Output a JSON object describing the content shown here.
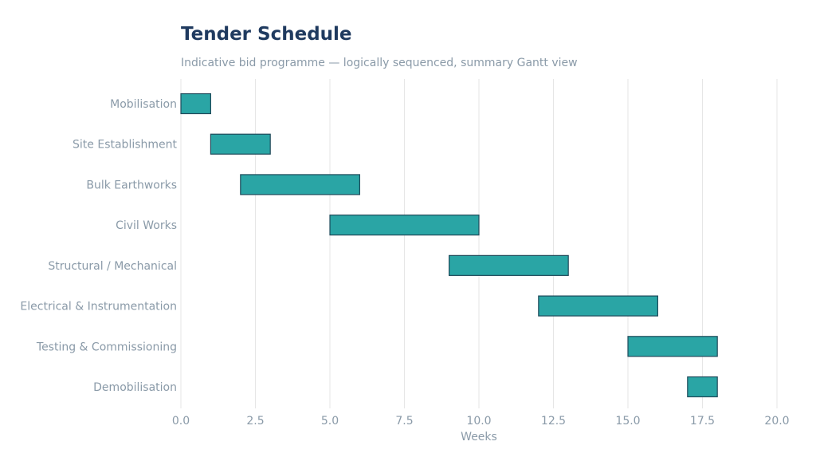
{
  "chart_data": {
    "type": "bar",
    "orientation": "horizontal-gantt",
    "title": "Tender Schedule",
    "subtitle": "Indicative bid programme — logically sequenced, summary Gantt view",
    "xlabel": "Weeks",
    "ylabel": "",
    "xlim": [
      0,
      20
    ],
    "xticks": [
      0,
      2.5,
      5,
      7.5,
      10,
      12.5,
      15,
      17.5,
      20
    ],
    "xtick_labels": [
      "0.0",
      "2.5",
      "5.0",
      "7.5",
      "10.0",
      "12.5",
      "15.0",
      "17.5",
      "20.0"
    ],
    "grid": "vertical",
    "categories": [
      "Mobilisation",
      "Site Establishment",
      "Bulk Earthworks",
      "Civil Works",
      "Structural / Mechanical",
      "Electrical & Instrumentation",
      "Testing & Commissioning",
      "Demobilisation"
    ],
    "tasks": [
      {
        "name": "Mobilisation",
        "start": 0,
        "end": 1
      },
      {
        "name": "Site Establishment",
        "start": 1,
        "end": 3
      },
      {
        "name": "Bulk Earthworks",
        "start": 2,
        "end": 6
      },
      {
        "name": "Civil Works",
        "start": 5,
        "end": 10
      },
      {
        "name": "Structural / Mechanical",
        "start": 9,
        "end": 13
      },
      {
        "name": "Electrical & Instrumentation",
        "start": 12,
        "end": 16
      },
      {
        "name": "Testing & Commissioning",
        "start": 15,
        "end": 18
      },
      {
        "name": "Demobilisation",
        "start": 17,
        "end": 18
      }
    ],
    "colors": {
      "bar_fill": "#2aa5a5",
      "bar_edge": "#1f4a5a",
      "grid": "#e6e6e6",
      "text": "#8a9aa8",
      "title": "#1f3a5f"
    }
  }
}
